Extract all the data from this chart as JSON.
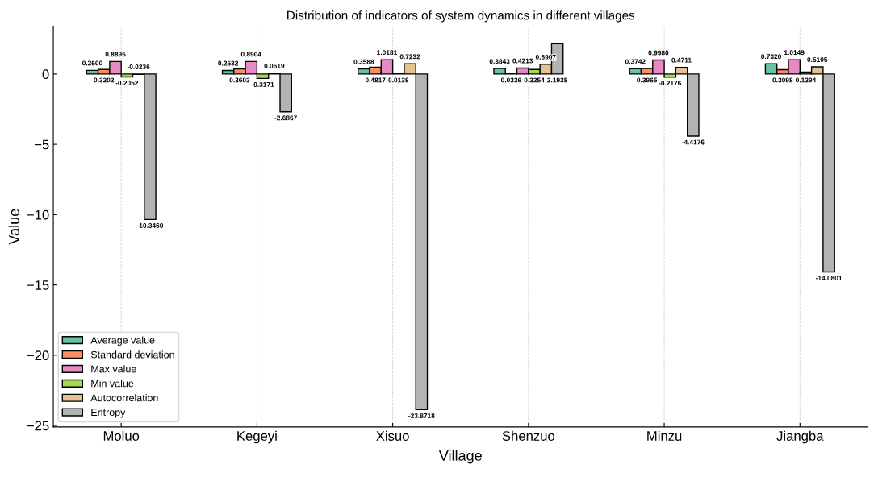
{
  "chart_data": {
    "type": "bar",
    "title": "Distribution of indicators of system dynamics in different villages",
    "xlabel": "Village",
    "ylabel": "Value",
    "categories": [
      "Moluo",
      "Kegeyi",
      "Xisuo",
      "Shenzuo",
      "Minzu",
      "Jiangba"
    ],
    "series": [
      {
        "name": "Average value",
        "color": "#66c2a5",
        "values": [
          0.26,
          0.2532,
          0.3588,
          0.3843,
          0.3742,
          0.732
        ],
        "value_labels": [
          "0.2600",
          "0.2532",
          "0.3588",
          "0.3843",
          "0.3742",
          "0.7320"
        ]
      },
      {
        "name": "Standard deviation",
        "color": "#fc8d62",
        "values": [
          0.3202,
          0.3603,
          0.4817,
          0.0336,
          0.3965,
          0.3098
        ],
        "value_labels": [
          "0.3202",
          "0.3603",
          "0.4817",
          "0.0336",
          "0.3965",
          "0.3098"
        ]
      },
      {
        "name": "Max value",
        "color": "#e78ac3",
        "values": [
          0.8895,
          0.8904,
          1.0181,
          0.4213,
          0.998,
          1.0149
        ],
        "value_labels": [
          "0.8895",
          "0.8904",
          "1.0181",
          "0.4213",
          "0.9980",
          "1.0149"
        ]
      },
      {
        "name": "Min value",
        "color": "#a6d854",
        "values": [
          -0.2052,
          -0.3171,
          0.0138,
          0.3254,
          -0.2176,
          0.1394
        ],
        "value_labels": [
          "-0.2052",
          "-0.3171",
          "0.0138",
          "0.3254",
          "-0.2176",
          "0.1394"
        ]
      },
      {
        "name": "Autocorrelation",
        "color": "#e5c494",
        "values": [
          -0.0236,
          0.0619,
          0.7232,
          0.6907,
          0.4711,
          0.5105
        ],
        "value_labels": [
          "-0.0236",
          "0.0619",
          "0.7232",
          "0.6907",
          "0.4711",
          "0.5105"
        ]
      },
      {
        "name": "Entropy",
        "color": "#b3b3b3",
        "values": [
          -10.346,
          -2.6867,
          -23.8718,
          2.1938,
          -4.4176,
          -14.0801
        ],
        "value_labels": [
          "-10.3460",
          "-2.6867",
          "-23.8718",
          "2.1938",
          "-4.4176",
          "-14.0801"
        ]
      }
    ],
    "ylim": [
      -25.1,
      3.4
    ],
    "yticks": [
      {
        "value": -25,
        "label": "−25"
      },
      {
        "value": -20,
        "label": "−20"
      },
      {
        "value": -15,
        "label": "−15"
      },
      {
        "value": -10,
        "label": "−10"
      },
      {
        "value": -5,
        "label": "−5"
      },
      0
    ],
    "grid": "x",
    "legend": "bottom left"
  }
}
